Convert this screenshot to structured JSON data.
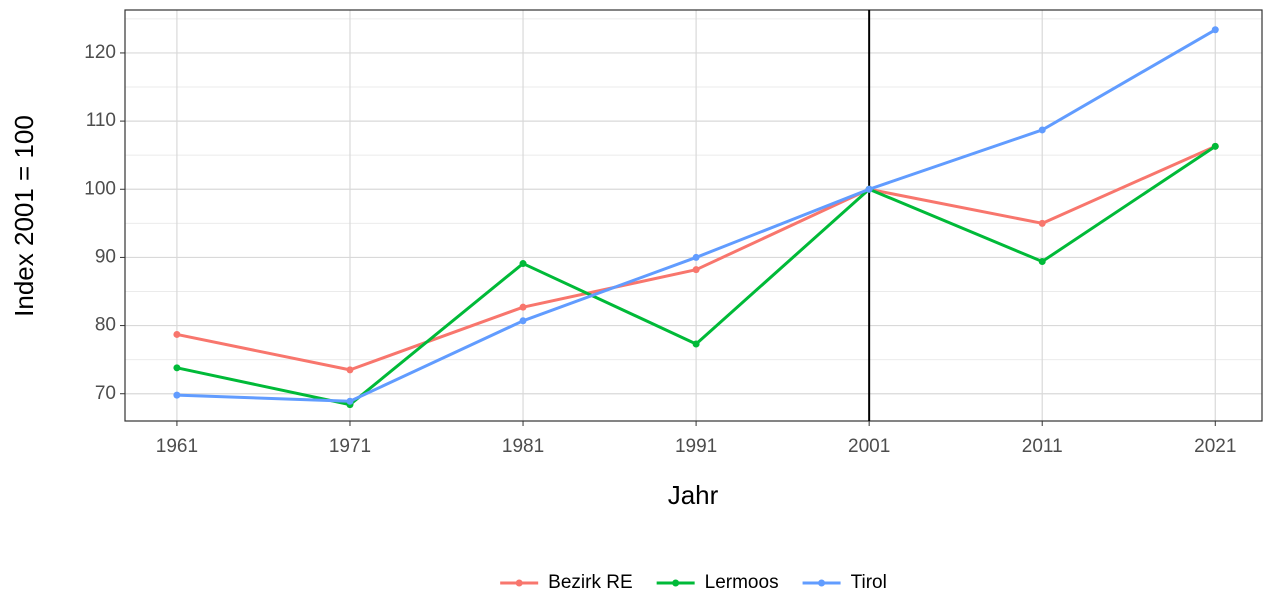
{
  "chart_data": {
    "type": "line",
    "x": [
      1961,
      1971,
      1981,
      1991,
      2001,
      2011,
      2021
    ],
    "series": [
      {
        "name": "Bezirk RE",
        "color": "#F8766D",
        "values": [
          78.7,
          73.5,
          82.7,
          88.2,
          100,
          95.0,
          106.3
        ]
      },
      {
        "name": "Lermoos",
        "color": "#00BA38",
        "values": [
          73.8,
          68.4,
          89.1,
          77.3,
          100,
          89.4,
          106.3
        ]
      },
      {
        "name": "Tirol",
        "color": "#619CFF",
        "values": [
          69.8,
          68.9,
          80.7,
          90.0,
          100,
          108.7,
          123.4
        ]
      }
    ],
    "xlabel": "Jahr",
    "ylabel": "Index 2001 = 100",
    "xlim": [
      1958.0,
      2023.7
    ],
    "ylim": [
      66.0,
      126.3
    ],
    "xticks": [
      1961,
      1971,
      1981,
      1991,
      2001,
      2011,
      2021
    ],
    "yticks": [
      70,
      80,
      90,
      100,
      110,
      120
    ],
    "vline_x": 2001,
    "grid": true,
    "legend": "bottom"
  }
}
